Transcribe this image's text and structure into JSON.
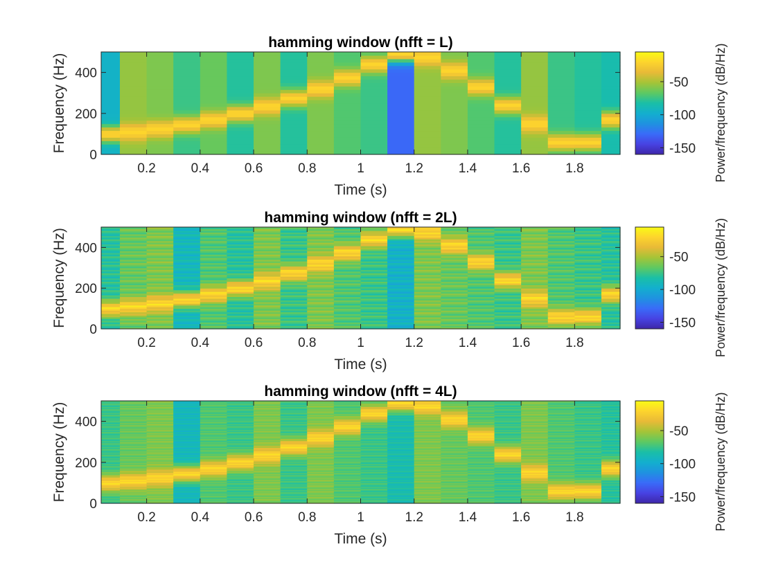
{
  "chart_data": [
    {
      "type": "heatmap",
      "title": "hamming window (nfft = L)",
      "xlabel": "Time (s)",
      "ylabel": "Frequency (Hz)",
      "xlim": [
        0.03,
        1.97
      ],
      "ylim": [
        0,
        500
      ],
      "xticks": [
        "0.2",
        "0.4",
        "0.6",
        "0.8",
        "1",
        "1.2",
        "1.4",
        "1.6",
        "1.8"
      ],
      "xtick_values": [
        0.2,
        0.4,
        0.6,
        0.8,
        1.0,
        1.2,
        1.4,
        1.6,
        1.8
      ],
      "yticks": [
        "0",
        "200",
        "400"
      ],
      "ytick_values": [
        0,
        200,
        400
      ],
      "colorbar": {
        "label": "Power/frequency (dB/Hz)",
        "ticks": [
          "-50",
          "-100",
          "-150"
        ],
        "tick_values": [
          -50,
          -100,
          -150
        ],
        "clim": [
          -160,
          -5
        ],
        "colormap": "parula"
      },
      "frame_times_s": [
        0.05,
        0.15,
        0.25,
        0.35,
        0.45,
        0.55,
        0.65,
        0.75,
        0.85,
        0.95,
        1.05,
        1.15,
        1.25,
        1.35,
        1.45,
        1.55,
        1.65,
        1.75,
        1.85,
        1.95
      ],
      "ridge_frequency_hz": [
        100,
        110,
        125,
        145,
        170,
        200,
        235,
        275,
        320,
        375,
        440,
        490,
        475,
        410,
        330,
        240,
        150,
        60,
        60,
        170
      ],
      "frame_background_db": [
        -95,
        -55,
        -60,
        -75,
        -65,
        -80,
        -60,
        -80,
        -60,
        -70,
        -75,
        -130,
        -55,
        -60,
        -70,
        -80,
        -55,
        -75,
        -80,
        -85
      ],
      "ridge_peak_db": -20
    },
    {
      "type": "heatmap",
      "title": "hamming window (nfft = 2L)",
      "xlabel": "Time (s)",
      "ylabel": "Frequency (Hz)",
      "xlim": [
        0.03,
        1.97
      ],
      "ylim": [
        0,
        500
      ],
      "xticks": [
        "0.2",
        "0.4",
        "0.6",
        "0.8",
        "1",
        "1.2",
        "1.4",
        "1.6",
        "1.8"
      ],
      "xtick_values": [
        0.2,
        0.4,
        0.6,
        0.8,
        1.0,
        1.2,
        1.4,
        1.6,
        1.8
      ],
      "yticks": [
        "0",
        "200",
        "400"
      ],
      "ytick_values": [
        0,
        200,
        400
      ],
      "colorbar": {
        "label": "Power/frequency (dB/Hz)",
        "ticks": [
          "-50",
          "-100",
          "-150"
        ],
        "tick_values": [
          -50,
          -100,
          -150
        ],
        "clim": [
          -160,
          -5
        ],
        "colormap": "parula"
      },
      "frame_times_s": [
        0.05,
        0.15,
        0.25,
        0.35,
        0.45,
        0.55,
        0.65,
        0.75,
        0.85,
        0.95,
        1.05,
        1.15,
        1.25,
        1.35,
        1.45,
        1.55,
        1.65,
        1.75,
        1.85,
        1.95
      ],
      "ridge_frequency_hz": [
        100,
        110,
        125,
        145,
        170,
        200,
        235,
        275,
        320,
        375,
        440,
        490,
        475,
        410,
        330,
        240,
        150,
        60,
        60,
        170
      ],
      "frame_background_db": [
        -80,
        -65,
        -60,
        -90,
        -70,
        -80,
        -60,
        -75,
        -60,
        -70,
        -75,
        -95,
        -60,
        -65,
        -70,
        -75,
        -60,
        -70,
        -75,
        -80
      ],
      "ridge_peak_db": -20
    },
    {
      "type": "heatmap",
      "title": "hamming window (nfft = 4L)",
      "xlabel": "Time (s)",
      "ylabel": "Frequency (Hz)",
      "xlim": [
        0.03,
        1.97
      ],
      "ylim": [
        0,
        500
      ],
      "xticks": [
        "0.2",
        "0.4",
        "0.6",
        "0.8",
        "1",
        "1.2",
        "1.4",
        "1.6",
        "1.8"
      ],
      "xtick_values": [
        0.2,
        0.4,
        0.6,
        0.8,
        1.0,
        1.2,
        1.4,
        1.6,
        1.8
      ],
      "yticks": [
        "0",
        "200",
        "400"
      ],
      "ytick_values": [
        0,
        200,
        400
      ],
      "colorbar": {
        "label": "Power/frequency (dB/Hz)",
        "ticks": [
          "-50",
          "-100",
          "-150"
        ],
        "tick_values": [
          -50,
          -100,
          -150
        ],
        "clim": [
          -160,
          -5
        ],
        "colormap": "parula"
      },
      "frame_times_s": [
        0.05,
        0.15,
        0.25,
        0.35,
        0.45,
        0.55,
        0.65,
        0.75,
        0.85,
        0.95,
        1.05,
        1.15,
        1.25,
        1.35,
        1.45,
        1.55,
        1.65,
        1.75,
        1.85,
        1.95
      ],
      "ridge_frequency_hz": [
        100,
        110,
        125,
        145,
        170,
        200,
        235,
        275,
        320,
        375,
        440,
        490,
        475,
        410,
        330,
        240,
        150,
        60,
        60,
        170
      ],
      "frame_background_db": [
        -75,
        -65,
        -60,
        -90,
        -70,
        -75,
        -60,
        -75,
        -60,
        -70,
        -75,
        -85,
        -60,
        -65,
        -70,
        -75,
        -60,
        -70,
        -75,
        -80
      ],
      "ridge_peak_db": -20
    }
  ]
}
